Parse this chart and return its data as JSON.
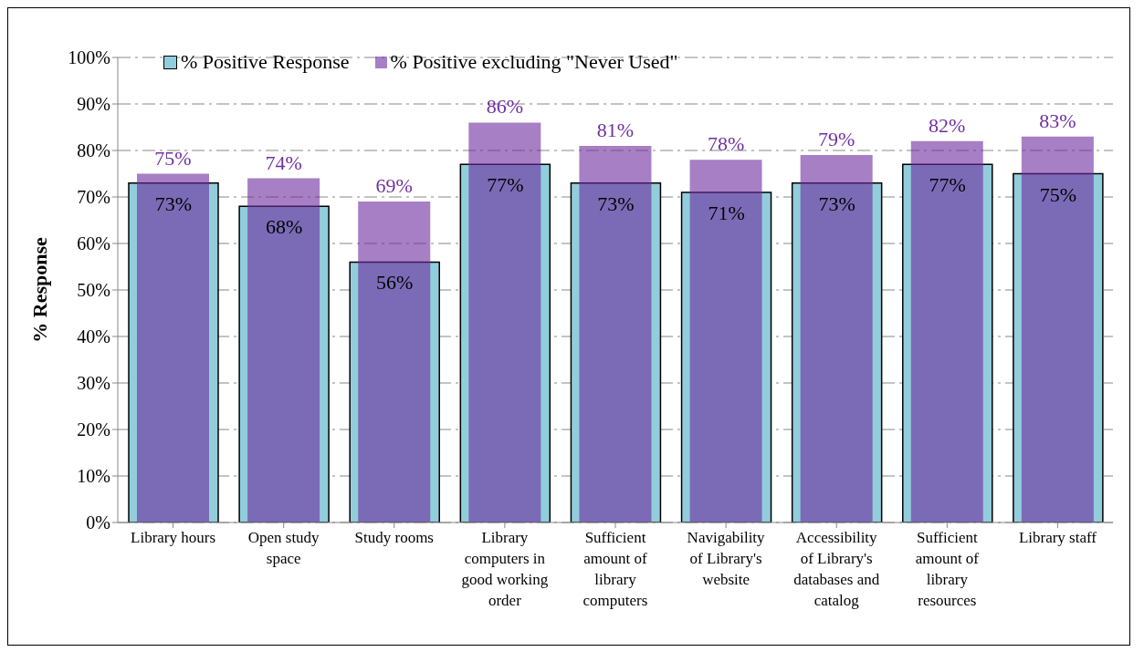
{
  "chart_data": {
    "type": "bar",
    "ylabel": "% Response",
    "categories": [
      "Library hours",
      "Open study space",
      "Study rooms",
      "Library computers in good working order",
      "Sufficient amount of library computers",
      "Navigability of Library's website",
      "Accessibility of Library's databases and catalog",
      "Sufficient amount of library resources",
      "Library staff"
    ],
    "series": [
      {
        "name": "% Positive Response",
        "color": "#92cddc",
        "values": [
          73,
          68,
          56,
          77,
          73,
          71,
          73,
          77,
          75
        ],
        "value_labels": [
          "73%",
          "68%",
          "56%",
          "77%",
          "73%",
          "71%",
          "73%",
          "77%",
          "75%"
        ]
      },
      {
        "name": "% Positive excluding \"Never Used\"",
        "color": "#6c2a9d",
        "values": [
          75,
          74,
          69,
          86,
          81,
          78,
          79,
          82,
          83
        ],
        "value_labels": [
          "75%",
          "74%",
          "69%",
          "86%",
          "81%",
          "78%",
          "79%",
          "82%",
          "83%"
        ]
      }
    ],
    "ylim": [
      0,
      100
    ],
    "yticks": [
      {
        "value": 0,
        "label": "0%"
      },
      {
        "value": 10,
        "label": "10%"
      },
      {
        "value": 20,
        "label": "20%"
      },
      {
        "value": 30,
        "label": "30%"
      },
      {
        "value": 40,
        "label": "40%"
      },
      {
        "value": 50,
        "label": "50%"
      },
      {
        "value": 60,
        "label": "60%"
      },
      {
        "value": 70,
        "label": "70%"
      },
      {
        "value": 80,
        "label": "80%"
      },
      {
        "value": 90,
        "label": "90%"
      },
      {
        "value": 100,
        "label": "100%"
      }
    ],
    "grid": "y",
    "legend": "top left"
  }
}
